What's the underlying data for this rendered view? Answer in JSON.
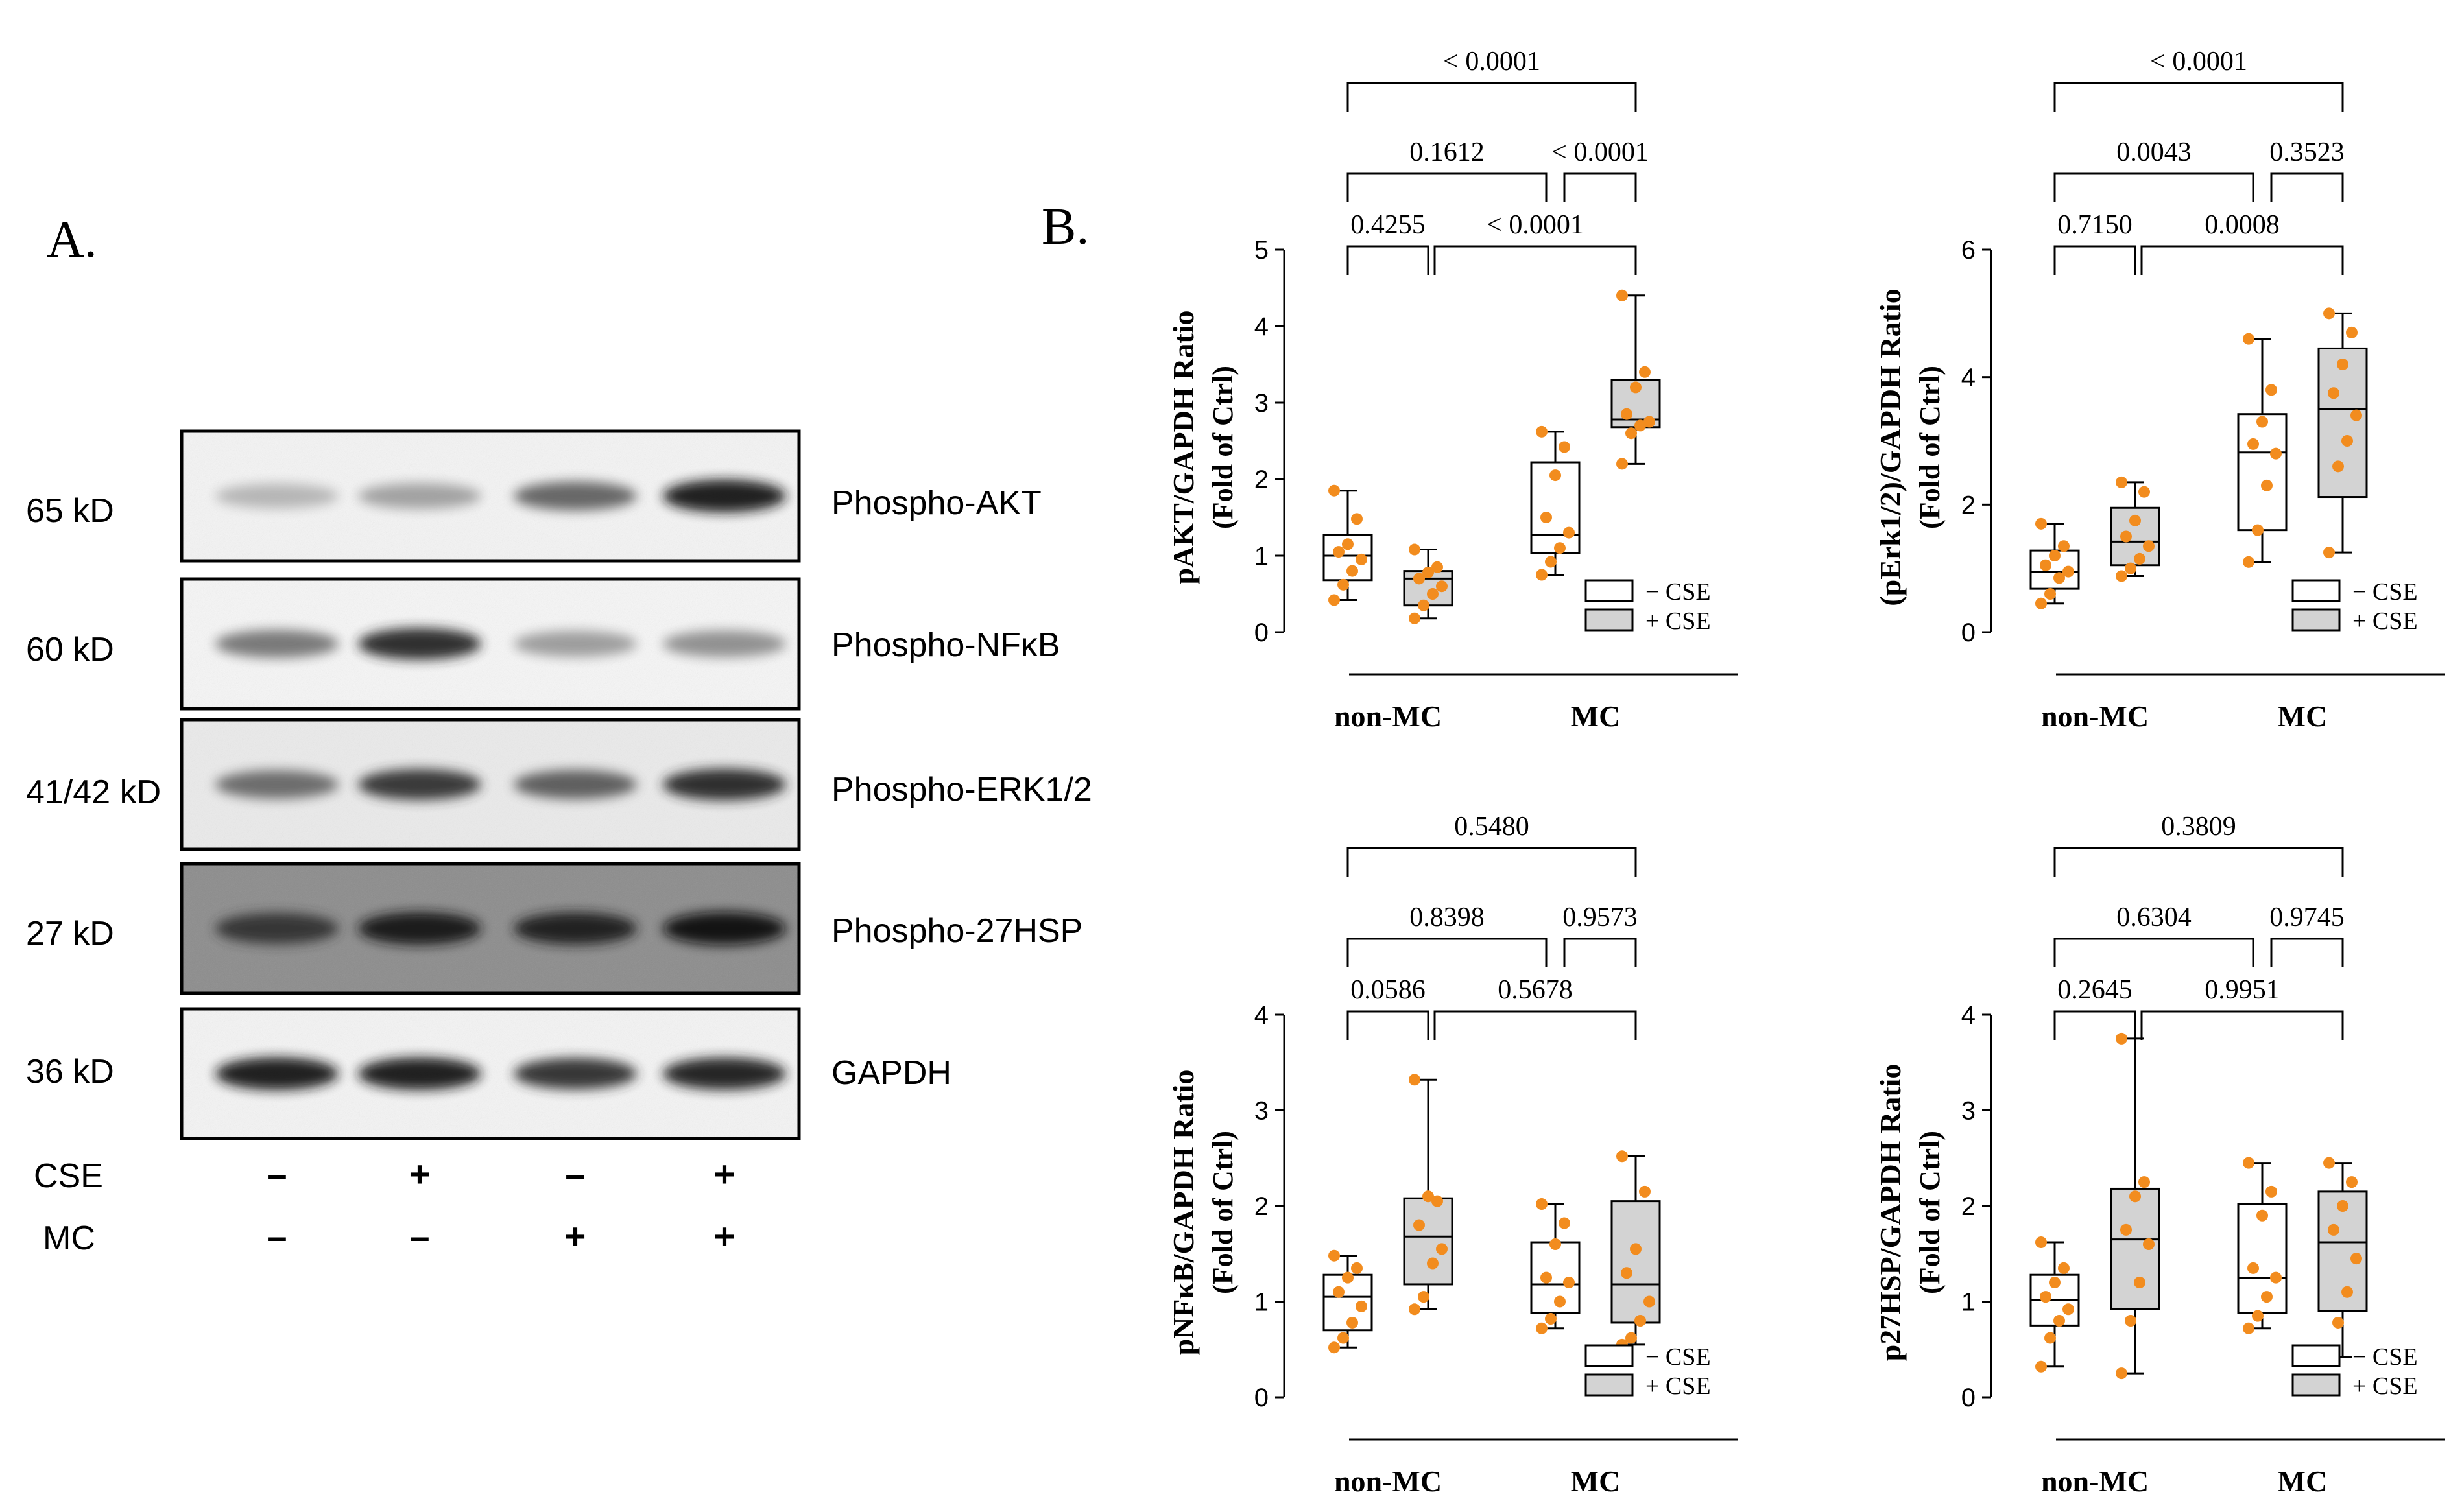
{
  "panel_labels": {
    "a": "A.",
    "b": "B."
  },
  "blot": {
    "rows": [
      {
        "kd": "65 kD",
        "protein": "Phospho-AKT",
        "bg": "#f4f4f4",
        "lanes": [
          0.3,
          0.38,
          0.62,
          0.92
        ]
      },
      {
        "kd": "60 kD",
        "protein": "Phospho-NFκB",
        "bg": "#f6f6f6",
        "lanes": [
          0.55,
          0.85,
          0.4,
          0.45
        ]
      },
      {
        "kd": "41/42 kD",
        "protein": "Phospho-ERK1/2",
        "bg": "#ebebeb",
        "lanes": [
          0.6,
          0.8,
          0.65,
          0.85
        ]
      },
      {
        "kd": "27 kD",
        "protein": "Phospho-27HSP",
        "bg": "#8c8c8c",
        "lanes": [
          0.8,
          0.92,
          0.88,
          0.95
        ]
      },
      {
        "kd": "36 kD",
        "protein": "GAPDH",
        "bg": "#f4f4f4",
        "lanes": [
          0.92,
          0.9,
          0.82,
          0.88
        ]
      }
    ],
    "treatments": [
      {
        "name": "CSE",
        "signs": [
          "–",
          "+",
          "–",
          "+"
        ]
      },
      {
        "name": "MC",
        "signs": [
          "–",
          "–",
          "+",
          "+"
        ]
      }
    ]
  },
  "chart_data": [
    {
      "type": "box",
      "ylabel_line1": "pAKT/GAPDH Ratio",
      "ylabel_line2": "(Fold of Ctrl)",
      "ylim": [
        0,
        5
      ],
      "yticks": [
        "0",
        "1",
        "2",
        "3",
        "4",
        "5"
      ],
      "categories": [
        "non-MC",
        "MC"
      ],
      "legend": [
        "− CSE",
        "+ CSE"
      ],
      "series": [
        {
          "group": "non-MC",
          "cse": "− CSE",
          "min": 0.42,
          "q1": 0.68,
          "median": 1.0,
          "q3": 1.27,
          "max": 1.85,
          "points": [
            0.42,
            0.62,
            0.8,
            0.95,
            1.05,
            1.15,
            1.48,
            1.85
          ]
        },
        {
          "group": "non-MC",
          "cse": "+ CSE",
          "min": 0.18,
          "q1": 0.35,
          "median": 0.7,
          "q3": 0.8,
          "max": 1.08,
          "points": [
            0.18,
            0.35,
            0.5,
            0.6,
            0.7,
            0.78,
            0.85,
            1.08
          ]
        },
        {
          "group": "MC",
          "cse": "− CSE",
          "min": 0.75,
          "q1": 1.03,
          "median": 1.27,
          "q3": 2.22,
          "max": 2.62,
          "points": [
            0.75,
            0.92,
            1.1,
            1.3,
            1.5,
            2.05,
            2.42,
            2.62
          ]
        },
        {
          "group": "MC",
          "cse": "+ CSE",
          "min": 2.2,
          "q1": 2.68,
          "median": 2.78,
          "q3": 3.3,
          "max": 4.4,
          "points": [
            2.2,
            2.6,
            2.7,
            2.75,
            2.85,
            3.2,
            3.4,
            4.4
          ]
        }
      ],
      "comparisons": [
        {
          "a": 0,
          "b": 3,
          "p": "< 0.0001"
        },
        {
          "a": 0,
          "b": 2,
          "p": "0.1612"
        },
        {
          "a": 2,
          "b": 3,
          "p": "< 0.0001"
        },
        {
          "a": 0,
          "b": 1,
          "p": "0.4255"
        },
        {
          "a": 1,
          "b": 3,
          "p": "< 0.0001"
        }
      ]
    },
    {
      "type": "box",
      "ylabel_line1": "(pErk1/2)/GAPDH Ratio",
      "ylabel_line2": "(Fold of Ctrl)",
      "ylim": [
        0,
        6
      ],
      "yticks": [
        "0",
        "2",
        "4",
        "6"
      ],
      "categories": [
        "non-MC",
        "MC"
      ],
      "legend": [
        "− CSE",
        "+ CSE"
      ],
      "series": [
        {
          "group": "non-MC",
          "cse": "− CSE",
          "min": 0.45,
          "q1": 0.68,
          "median": 0.95,
          "q3": 1.28,
          "max": 1.7,
          "points": [
            0.45,
            0.6,
            0.85,
            0.95,
            1.05,
            1.2,
            1.35,
            1.7
          ]
        },
        {
          "group": "non-MC",
          "cse": "+ CSE",
          "min": 0.88,
          "q1": 1.05,
          "median": 1.42,
          "q3": 1.95,
          "max": 2.35,
          "points": [
            0.88,
            1.0,
            1.15,
            1.35,
            1.5,
            1.75,
            2.2,
            2.35
          ]
        },
        {
          "group": "MC",
          "cse": "− CSE",
          "min": 1.1,
          "q1": 1.6,
          "median": 2.82,
          "q3": 3.42,
          "max": 4.6,
          "points": [
            1.1,
            1.6,
            2.3,
            2.8,
            2.95,
            3.3,
            3.8,
            4.6
          ]
        },
        {
          "group": "MC",
          "cse": "+ CSE",
          "min": 1.25,
          "q1": 2.12,
          "median": 3.5,
          "q3": 4.45,
          "max": 5.0,
          "points": [
            1.25,
            2.6,
            3.0,
            3.4,
            3.75,
            4.2,
            4.7,
            5.0
          ]
        }
      ],
      "comparisons": [
        {
          "a": 0,
          "b": 3,
          "p": "< 0.0001"
        },
        {
          "a": 0,
          "b": 2,
          "p": "0.0043"
        },
        {
          "a": 2,
          "b": 3,
          "p": "0.3523"
        },
        {
          "a": 0,
          "b": 1,
          "p": "0.7150"
        },
        {
          "a": 1,
          "b": 3,
          "p": "0.0008"
        }
      ]
    },
    {
      "type": "box",
      "ylabel_line1": "pNFκB/GAPDH Ratio",
      "ylabel_line2": "(Fold of Ctrl)",
      "ylim": [
        0,
        4
      ],
      "yticks": [
        "0",
        "1",
        "2",
        "3",
        "4"
      ],
      "categories": [
        "non-MC",
        "MC"
      ],
      "legend": [
        "− CSE",
        "+ CSE"
      ],
      "series": [
        {
          "group": "non-MC",
          "cse": "− CSE",
          "min": 0.52,
          "q1": 0.7,
          "median": 1.05,
          "q3": 1.28,
          "max": 1.48,
          "points": [
            0.52,
            0.62,
            0.78,
            0.95,
            1.1,
            1.25,
            1.35,
            1.48
          ]
        },
        {
          "group": "non-MC",
          "cse": "+ CSE",
          "min": 0.92,
          "q1": 1.18,
          "median": 1.68,
          "q3": 2.08,
          "max": 3.32,
          "points": [
            0.92,
            1.05,
            1.4,
            1.55,
            1.8,
            2.1,
            2.05,
            3.32
          ]
        },
        {
          "group": "MC",
          "cse": "− CSE",
          "min": 0.72,
          "q1": 0.88,
          "median": 1.18,
          "q3": 1.62,
          "max": 2.02,
          "points": [
            0.72,
            0.82,
            1.0,
            1.2,
            1.25,
            1.6,
            1.82,
            2.02
          ]
        },
        {
          "group": "MC",
          "cse": "+ CSE",
          "min": 0.55,
          "q1": 0.78,
          "median": 1.18,
          "q3": 2.05,
          "max": 2.52,
          "points": [
            0.55,
            0.62,
            0.8,
            1.0,
            1.3,
            1.55,
            2.15,
            2.52
          ]
        }
      ],
      "comparisons": [
        {
          "a": 0,
          "b": 3,
          "p": "0.5480"
        },
        {
          "a": 0,
          "b": 2,
          "p": "0.8398"
        },
        {
          "a": 2,
          "b": 3,
          "p": "0.9573"
        },
        {
          "a": 0,
          "b": 1,
          "p": "0.0586"
        },
        {
          "a": 1,
          "b": 3,
          "p": "0.5678"
        }
      ]
    },
    {
      "type": "box",
      "ylabel_line1": "p27HSP/GAPDH Ratio",
      "ylabel_line2": "(Fold of Ctrl)",
      "ylim": [
        0,
        4
      ],
      "yticks": [
        "0",
        "1",
        "2",
        "3",
        "4"
      ],
      "categories": [
        "non-MC",
        "MC"
      ],
      "legend": [
        "− CSE",
        "+ CSE"
      ],
      "series": [
        {
          "group": "non-MC",
          "cse": "− CSE",
          "min": 0.32,
          "q1": 0.75,
          "median": 1.02,
          "q3": 1.28,
          "max": 1.62,
          "points": [
            0.32,
            0.62,
            0.8,
            0.92,
            1.05,
            1.2,
            1.35,
            1.62
          ]
        },
        {
          "group": "non-MC",
          "cse": "+ CSE",
          "min": 0.25,
          "q1": 0.92,
          "median": 1.65,
          "q3": 2.18,
          "max": 3.75,
          "points": [
            0.25,
            0.8,
            1.2,
            1.6,
            1.75,
            2.1,
            2.25,
            3.75
          ]
        },
        {
          "group": "MC",
          "cse": "− CSE",
          "min": 0.72,
          "q1": 0.88,
          "median": 1.25,
          "q3": 2.02,
          "max": 2.45,
          "points": [
            0.72,
            0.85,
            1.05,
            1.25,
            1.35,
            1.9,
            2.15,
            2.45
          ]
        },
        {
          "group": "MC",
          "cse": "+ CSE",
          "min": 0.42,
          "q1": 0.9,
          "median": 1.62,
          "q3": 2.15,
          "max": 2.45,
          "points": [
            0.42,
            0.78,
            1.1,
            1.45,
            1.75,
            2.0,
            2.25,
            2.45
          ]
        }
      ],
      "comparisons": [
        {
          "a": 0,
          "b": 3,
          "p": "0.3809"
        },
        {
          "a": 0,
          "b": 2,
          "p": "0.6304"
        },
        {
          "a": 2,
          "b": 3,
          "p": "0.9745"
        },
        {
          "a": 0,
          "b": 1,
          "p": "0.2645"
        },
        {
          "a": 1,
          "b": 3,
          "p": "0.9951"
        }
      ]
    }
  ]
}
